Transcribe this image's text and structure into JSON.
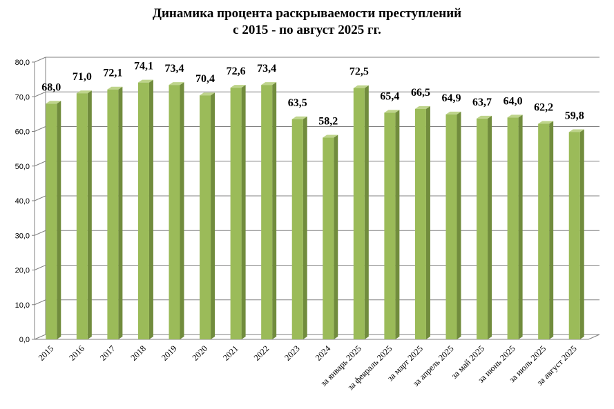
{
  "chart_data": {
    "type": "bar",
    "title": "Динамика процента раскрываемости преступлений",
    "subtitle": "с 2015 - по август 2025 гг.",
    "categories": [
      "2015",
      "2016",
      "2017",
      "2018",
      "2019",
      "2020",
      "2021",
      "2022",
      "2023",
      "2024",
      "за январь 2025",
      "за февраль 2025",
      "за март 2025",
      "за апрель 2025",
      "за май 2025",
      "за июнь 2025",
      "за июль 2025",
      "за август 2025"
    ],
    "values": [
      68.0,
      71.0,
      72.1,
      74.1,
      73.4,
      70.4,
      72.6,
      73.4,
      63.5,
      58.2,
      72.5,
      65.4,
      66.5,
      64.9,
      63.7,
      64.0,
      62.2,
      59.8
    ],
    "value_labels": [
      "68,0",
      "71,0",
      "72,1",
      "74,1",
      "73,4",
      "70,4",
      "72,6",
      "73,4",
      "63,5",
      "58,2",
      "72,5",
      "65,4",
      "66,5",
      "64,9",
      "63,7",
      "64,0",
      "62,2",
      "59,8"
    ],
    "y_ticks": [
      "0,0",
      "10,0",
      "20,0",
      "30,0",
      "40,0",
      "50,0",
      "60,0",
      "70,0",
      "80,0"
    ],
    "ylim": [
      0,
      80
    ],
    "xlabel": "",
    "ylabel": "",
    "grid": true,
    "legend": "none",
    "colors": {
      "bar_front": "#9bbb59",
      "bar_side": "#718c3d",
      "bar_top": "#bed48b",
      "grid": "#808080",
      "axis": "#808080"
    }
  }
}
